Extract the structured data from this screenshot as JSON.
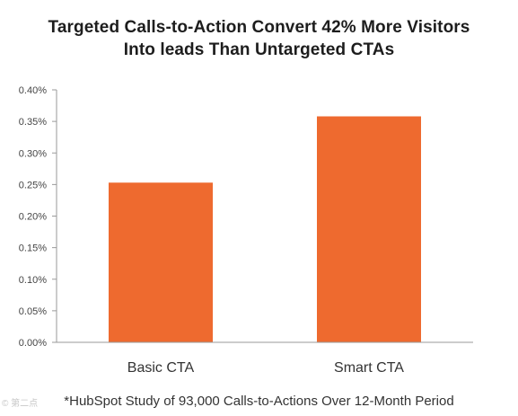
{
  "chart_data": {
    "type": "bar",
    "title": "Targeted Calls-to-Action Convert 42% More Visitors Into leads Than Untargeted CTAs",
    "title_lines": [
      "Targeted Calls-to-Action Convert 42% More Visitors",
      "Into leads Than Untargeted CTAs"
    ],
    "categories": [
      "Basic CTA",
      "Smart CTA"
    ],
    "values": [
      0.253,
      0.358
    ],
    "unit": "%",
    "ylim": [
      0,
      0.4
    ],
    "yticks": [
      0.0,
      0.05,
      0.1,
      0.15,
      0.2,
      0.25,
      0.3,
      0.35,
      0.4
    ],
    "ytick_labels": [
      "0.00%",
      "0.05%",
      "0.10%",
      "0.15%",
      "0.20%",
      "0.25%",
      "0.30%",
      "0.35%",
      "0.40%"
    ],
    "grid": false,
    "legend": "none",
    "bar_color": "#ee6a2f",
    "axis_color": "#9a9a9a"
  },
  "footnote": "*HubSpot Study of 93,000 Calls-to-Actions Over 12-Month Period",
  "watermark": "© 第二点"
}
